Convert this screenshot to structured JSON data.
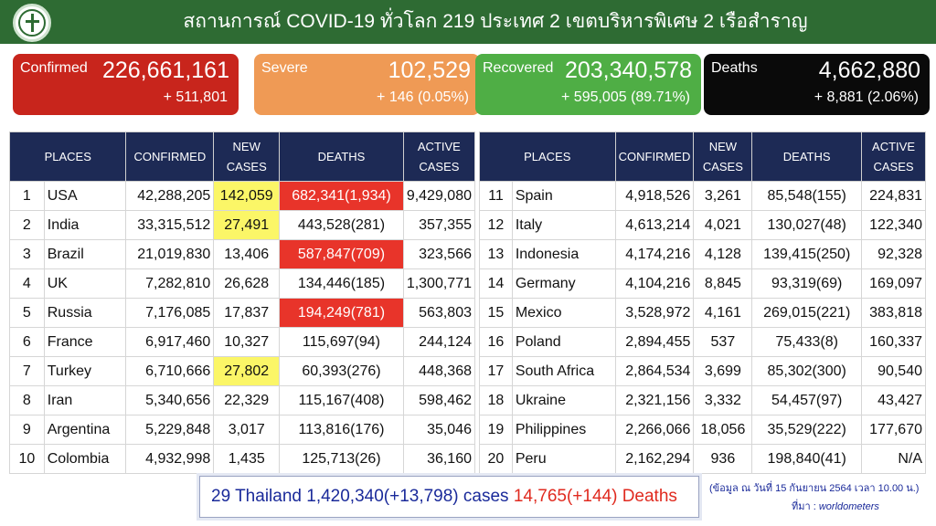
{
  "header": {
    "title": "สถานการณ์ COVID-19 ทั่วโลก 219 ประเทศ 2 เขตบริหารพิเศษ 2 เรือสำราญ",
    "logo_icon": "moph-emblem-icon"
  },
  "cards": {
    "confirmed": {
      "label": "Confirmed",
      "value": "226,661,161",
      "change": "+ 511,801"
    },
    "severe": {
      "label": "Severe",
      "value": "102,529",
      "change": "+ 146 (0.05%)"
    },
    "recovered": {
      "label": "Recovered",
      "value": "203,340,578",
      "change": "+ 595,005 (89.71%)"
    },
    "deaths": {
      "label": "Deaths",
      "value": "4,662,880",
      "change": "+ 8,881 (2.06%)"
    }
  },
  "table_headers": {
    "places": "PLACES",
    "confirmed": "CONFIRMED",
    "new_cases": "NEW CASES",
    "deaths": "DEATHS",
    "active_cases": "ACTIVE CASES"
  },
  "left_rows": [
    {
      "rank": "1",
      "place": "USA",
      "confirmed": "42,288,205",
      "new": "142,059",
      "deaths": "682,341(1,934)",
      "active": "9,429,080",
      "hl_new": true,
      "hl_death": true
    },
    {
      "rank": "2",
      "place": "India",
      "confirmed": "33,315,512",
      "new": "27,491",
      "deaths": "443,528(281)",
      "active": "357,355",
      "hl_new": true,
      "hl_death": false
    },
    {
      "rank": "3",
      "place": "Brazil",
      "confirmed": "21,019,830",
      "new": "13,406",
      "deaths": "587,847(709)",
      "active": "323,566",
      "hl_new": false,
      "hl_death": true
    },
    {
      "rank": "4",
      "place": "UK",
      "confirmed": "7,282,810",
      "new": "26,628",
      "deaths": "134,446(185)",
      "active": "1,300,771",
      "hl_new": false,
      "hl_death": false
    },
    {
      "rank": "5",
      "place": "Russia",
      "confirmed": "7,176,085",
      "new": "17,837",
      "deaths": "194,249(781)",
      "active": "563,803",
      "hl_new": false,
      "hl_death": true
    },
    {
      "rank": "6",
      "place": "France",
      "confirmed": "6,917,460",
      "new": "10,327",
      "deaths": "115,697(94)",
      "active": "244,124",
      "hl_new": false,
      "hl_death": false
    },
    {
      "rank": "7",
      "place": "Turkey",
      "confirmed": "6,710,666",
      "new": "27,802",
      "deaths": "60,393(276)",
      "active": "448,368",
      "hl_new": true,
      "hl_death": false
    },
    {
      "rank": "8",
      "place": "Iran",
      "confirmed": "5,340,656",
      "new": "22,329",
      "deaths": "115,167(408)",
      "active": "598,462",
      "hl_new": false,
      "hl_death": false
    },
    {
      "rank": "9",
      "place": "Argentina",
      "confirmed": "5,229,848",
      "new": "3,017",
      "deaths": "113,816(176)",
      "active": "35,046",
      "hl_new": false,
      "hl_death": false
    },
    {
      "rank": "10",
      "place": "Colombia",
      "confirmed": "4,932,998",
      "new": "1,435",
      "deaths": "125,713(26)",
      "active": "36,160",
      "hl_new": false,
      "hl_death": false
    }
  ],
  "right_rows": [
    {
      "rank": "11",
      "place": "Spain",
      "confirmed": "4,918,526",
      "new": "3,261",
      "deaths": "85,548(155)",
      "active": "224,831"
    },
    {
      "rank": "12",
      "place": "Italy",
      "confirmed": "4,613,214",
      "new": "4,021",
      "deaths": "130,027(48)",
      "active": "122,340"
    },
    {
      "rank": "13",
      "place": "Indonesia",
      "confirmed": "4,174,216",
      "new": "4,128",
      "deaths": "139,415(250)",
      "active": "92,328"
    },
    {
      "rank": "14",
      "place": "Germany",
      "confirmed": "4,104,216",
      "new": "8,845",
      "deaths": "93,319(69)",
      "active": "169,097"
    },
    {
      "rank": "15",
      "place": "Mexico",
      "confirmed": "3,528,972",
      "new": "4,161",
      "deaths": "269,015(221)",
      "active": "383,818"
    },
    {
      "rank": "16",
      "place": "Poland",
      "confirmed": "2,894,455",
      "new": "537",
      "deaths": "75,433(8)",
      "active": "160,337"
    },
    {
      "rank": "17",
      "place": "South Africa",
      "confirmed": "2,864,534",
      "new": "3,699",
      "deaths": "85,302(300)",
      "active": "90,540"
    },
    {
      "rank": "18",
      "place": "Ukraine",
      "confirmed": "2,321,156",
      "new": "3,332",
      "deaths": "54,457(97)",
      "active": "43,427"
    },
    {
      "rank": "19",
      "place": "Philippines",
      "confirmed": "2,266,066",
      "new": "18,056",
      "deaths": "35,529(222)",
      "active": "177,670"
    },
    {
      "rank": "20",
      "place": "Peru",
      "confirmed": "2,162,294",
      "new": "936",
      "deaths": "198,840(41)",
      "active": "N/A"
    }
  ],
  "footer": {
    "rank": "29",
    "country": "Thailand",
    "cases": "1,420,340(+13,798)",
    "cases_label": "cases",
    "deaths": "14,765(+144)",
    "deaths_label": "Deaths",
    "note": "(ข้อมูล ณ วันที่ 15 กันยายน 2564 เวลา 10.00 น.)",
    "source_prefix": "ที่มา :",
    "source": "worldometers"
  },
  "colors": {
    "header_green": "#2e6b33",
    "table_header_navy": "#1d2a55",
    "confirmed": "#c8251c",
    "severe": "#ef9a55",
    "recovered": "#4fae45",
    "deaths": "#0a0a0a",
    "highlight_yellow": "#fbf667",
    "highlight_red": "#e8342a"
  }
}
